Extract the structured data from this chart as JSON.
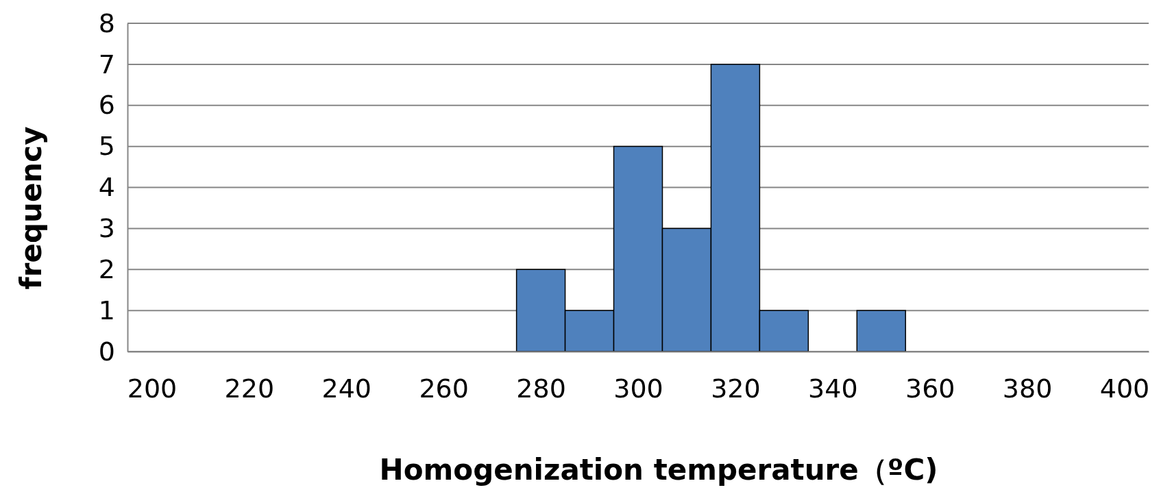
{
  "chart_data": {
    "type": "histogram",
    "xlabel": "Homogenization temperature（ºC)",
    "ylabel": "frequency",
    "bins": [
      195,
      205,
      215,
      225,
      235,
      245,
      255,
      265,
      275,
      285,
      295,
      305,
      315,
      325,
      335,
      345,
      355,
      365,
      375,
      385,
      395,
      405
    ],
    "values": [
      0,
      0,
      0,
      0,
      0,
      0,
      0,
      0,
      2,
      1,
      5,
      3,
      7,
      1,
      0,
      1,
      0,
      0,
      0,
      0,
      0
    ],
    "color": "#4f81bd",
    "xlim": [
      195,
      405
    ],
    "xticks": [
      200,
      220,
      240,
      260,
      280,
      300,
      320,
      340,
      360,
      380,
      400
    ],
    "ylim": [
      0,
      8
    ],
    "yticks": [
      0,
      1,
      2,
      3,
      4,
      5,
      6,
      7,
      8
    ],
    "grid": "y"
  }
}
